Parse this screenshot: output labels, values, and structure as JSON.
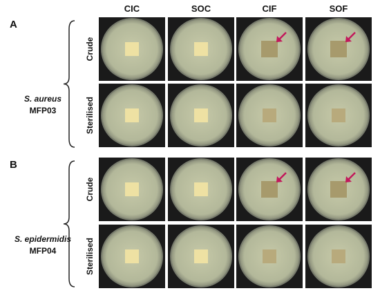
{
  "column_headers": [
    "CIC",
    "SOC",
    "CIF",
    "SOF"
  ],
  "panels": [
    {
      "label": "A",
      "organism": "S. aureus",
      "strain": "MFP03",
      "rows": [
        "Crude",
        "Sterilised"
      ]
    },
    {
      "label": "B",
      "organism": "S. epidermidis",
      "strain": "MFP04",
      "rows": [
        "Crude",
        "Sterilised"
      ]
    }
  ]
}
